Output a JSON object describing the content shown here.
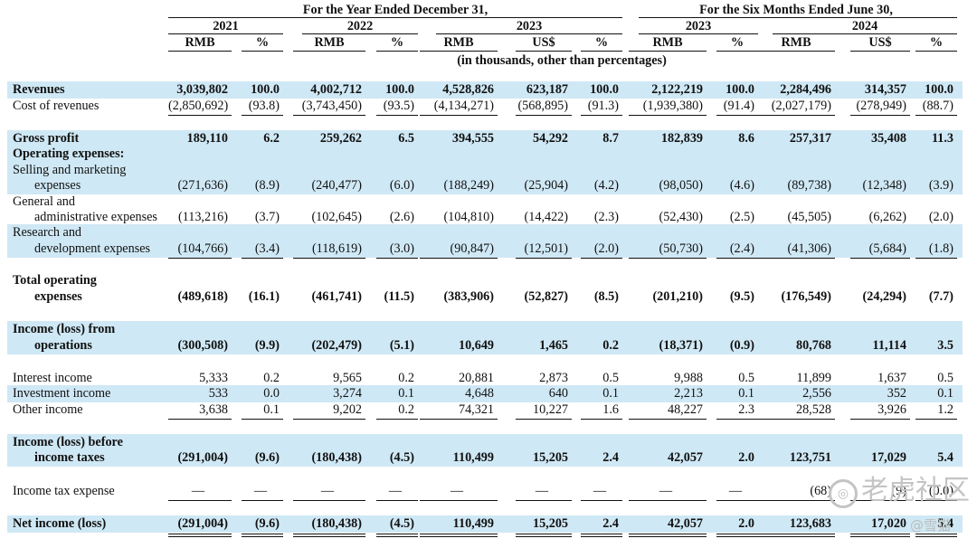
{
  "header": {
    "year_group": "For the Year Ended December 31,",
    "six_month_group": "For the Six Months Ended June 30,",
    "years": [
      "2021",
      "2022",
      "2023",
      "2023",
      "2024"
    ],
    "cols": [
      "RMB",
      "%",
      "RMB",
      "%",
      "RMB",
      "US$",
      "%",
      "RMB",
      "%",
      "RMB",
      "US$",
      "%"
    ],
    "note": "(in thousands, other than percentages)"
  },
  "rows": [
    {
      "label": [
        "Revenues"
      ],
      "bold": true,
      "band": true,
      "values": [
        "3,039,802",
        "100.0",
        "4,002,712",
        "100.0",
        "4,528,826",
        "623,187",
        "100.0",
        "2,122,219",
        "100.0",
        "2,284,496",
        "314,357",
        "100.0"
      ]
    },
    {
      "label": [
        "Cost of revenues"
      ],
      "values": [
        "(2,850,692)",
        "(93.8)",
        "(3,743,450)",
        "(93.5)",
        "(4,134,271)",
        "(568,895)",
        "(91.3)",
        "(1,939,380)",
        "(91.4)",
        "(2,027,179)",
        "(278,949)",
        "(88.7)"
      ]
    },
    {
      "label": [
        "Gross profit"
      ],
      "bold": true,
      "band": true,
      "values": [
        "189,110",
        "6.2",
        "259,262",
        "6.5",
        "394,555",
        "54,292",
        "8.7",
        "182,839",
        "8.6",
        "257,317",
        "35,408",
        "11.3"
      ]
    },
    {
      "label": [
        "Operating expenses:"
      ],
      "bold": true,
      "band": true,
      "values": []
    },
    {
      "label": [
        "Selling and marketing",
        "expenses"
      ],
      "band": true,
      "values": [
        "(271,636)",
        "(8.9)",
        "(240,477)",
        "(6.0)",
        "(188,249)",
        "(25,904)",
        "(4.2)",
        "(98,050)",
        "(4.6)",
        "(89,738)",
        "(12,348)",
        "(3.9)"
      ]
    },
    {
      "label": [
        "General and",
        "administrative expenses"
      ],
      "values": [
        "(113,216)",
        "(3.7)",
        "(102,645)",
        "(2.6)",
        "(104,810)",
        "(14,422)",
        "(2.3)",
        "(52,430)",
        "(2.5)",
        "(45,505)",
        "(6,262)",
        "(2.0)"
      ]
    },
    {
      "label": [
        "Research and",
        "development expenses"
      ],
      "band": true,
      "values": [
        "(104,766)",
        "(3.4)",
        "(118,619)",
        "(3.0)",
        "(90,847)",
        "(12,501)",
        "(2.0)",
        "(50,730)",
        "(2.4)",
        "(41,306)",
        "(5,684)",
        "(1.8)"
      ]
    },
    {
      "label": [
        "Total operating",
        "expenses"
      ],
      "bold": true,
      "values": [
        "(489,618)",
        "(16.1)",
        "(461,741)",
        "(11.5)",
        "(383,906)",
        "(52,827)",
        "(8.5)",
        "(201,210)",
        "(9.5)",
        "(176,549)",
        "(24,294)",
        "(7.7)"
      ]
    },
    {
      "label": [
        "Income (loss) from",
        "operations"
      ],
      "bold": true,
      "band": true,
      "values": [
        "(300,508)",
        "(9.9)",
        "(202,479)",
        "(5.1)",
        "10,649",
        "1,465",
        "0.2",
        "(18,371)",
        "(0.9)",
        "80,768",
        "11,114",
        "3.5"
      ]
    },
    {
      "label": [
        "Interest income"
      ],
      "values": [
        "5,333",
        "0.2",
        "9,565",
        "0.2",
        "20,881",
        "2,873",
        "0.5",
        "9,988",
        "0.5",
        "11,899",
        "1,637",
        "0.5"
      ]
    },
    {
      "label": [
        "Investment income"
      ],
      "band": true,
      "values": [
        "533",
        "0.0",
        "3,274",
        "0.1",
        "4,648",
        "640",
        "0.1",
        "2,213",
        "0.1",
        "2,556",
        "352",
        "0.1"
      ]
    },
    {
      "label": [
        "Other income"
      ],
      "values": [
        "3,638",
        "0.1",
        "9,202",
        "0.2",
        "74,321",
        "10,227",
        "1.6",
        "48,227",
        "2.3",
        "28,528",
        "3,926",
        "1.2"
      ]
    },
    {
      "label": [
        "Income (loss) before",
        "income taxes"
      ],
      "bold": true,
      "band": true,
      "values": [
        "(291,004)",
        "(9.6)",
        "(180,438)",
        "(4.5)",
        "110,499",
        "15,205",
        "2.4",
        "42,057",
        "2.0",
        "123,751",
        "17,029",
        "5.4"
      ]
    },
    {
      "label": [
        "Income tax expense"
      ],
      "values": [
        "—",
        "—",
        "—",
        "—",
        "—",
        "—",
        "—",
        "—",
        "—",
        "(68)",
        "(9)",
        "(0.0)"
      ]
    },
    {
      "label": [
        "Net income (loss)"
      ],
      "bold": true,
      "band": true,
      "values": [
        "(291,004)",
        "(9.6)",
        "(180,438)",
        "(4.5)",
        "110,499",
        "15,205",
        "2.4",
        "42,057",
        "2.0",
        "123,683",
        "17,020",
        "5.4"
      ]
    }
  ],
  "watermark": {
    "brand": "老虎社区",
    "handle": "@雪猫"
  }
}
